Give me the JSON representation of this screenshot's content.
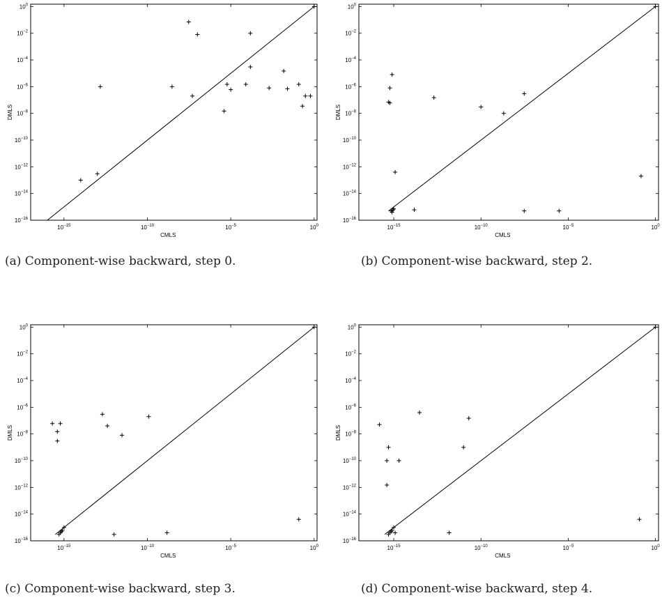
{
  "chart_data": [
    {
      "type": "scatter",
      "caption": "(a) Component-wise backward, step 0.",
      "xlabel": "CMLS",
      "ylabel": "DMLS",
      "xscale": "log",
      "yscale": "log",
      "xlim": [
        1e-17,
        1.5
      ],
      "ylim": [
        1e-16,
        1.5
      ],
      "x_ticks": [
        -15,
        -10,
        -5,
        0
      ],
      "y_ticks": [
        -16,
        -14,
        -12,
        -10,
        -8,
        -6,
        -4,
        -2,
        0
      ],
      "reference_line": {
        "x": [
          1e-16,
          1
        ],
        "y": [
          1e-16,
          1
        ]
      },
      "points": [
        {
          "x": 1e-14,
          "y": 1e-13
        },
        {
          "x": 1e-13,
          "y": 3e-13
        },
        {
          "x": 1.5e-13,
          "y": 1e-06
        },
        {
          "x": 3e-09,
          "y": 1e-06
        },
        {
          "x": 3e-08,
          "y": 0.07
        },
        {
          "x": 5e-08,
          "y": 2e-07
        },
        {
          "x": 1e-07,
          "y": 0.008
        },
        {
          "x": 4e-06,
          "y": 1.5e-08
        },
        {
          "x": 6e-06,
          "y": 1.5e-06
        },
        {
          "x": 1e-05,
          "y": 6e-07
        },
        {
          "x": 8e-05,
          "y": 1.5e-06
        },
        {
          "x": 0.00015,
          "y": 3e-05
        },
        {
          "x": 0.00015,
          "y": 0.01
        },
        {
          "x": 0.002,
          "y": 8e-07
        },
        {
          "x": 0.015,
          "y": 1.5e-05
        },
        {
          "x": 0.025,
          "y": 7e-07
        },
        {
          "x": 0.12,
          "y": 1.5e-06
        },
        {
          "x": 0.2,
          "y": 3.5e-08
        },
        {
          "x": 0.3,
          "y": 2e-07
        },
        {
          "x": 0.6,
          "y": 2e-07
        },
        {
          "x": 1,
          "y": 1
        }
      ]
    },
    {
      "type": "scatter",
      "caption": "(b) Component-wise backward, step 2.",
      "xlabel": "CMLS",
      "ylabel": "DMLS",
      "xscale": "log",
      "yscale": "log",
      "xlim": [
        1e-17,
        1.5
      ],
      "ylim": [
        1e-16,
        1.5
      ],
      "x_ticks": [
        -15,
        -10,
        -5,
        0
      ],
      "y_ticks": [
        -16,
        -14,
        -12,
        -10,
        -8,
        -6,
        -4,
        -2,
        0
      ],
      "reference_line": {
        "x": [
          5e-16,
          1
        ],
        "y": [
          5e-16,
          1
        ]
      },
      "points": [
        {
          "x": 5e-16,
          "y": 7e-08
        },
        {
          "x": 6e-16,
          "y": 8e-07
        },
        {
          "x": 6e-16,
          "y": 6e-08
        },
        {
          "x": 8e-16,
          "y": 8e-06
        },
        {
          "x": 7e-16,
          "y": 5e-16
        },
        {
          "x": 8e-16,
          "y": 4e-16
        },
        {
          "x": 9e-16,
          "y": 6e-16
        },
        {
          "x": 1e-15,
          "y": 7e-16
        },
        {
          "x": 1.2e-15,
          "y": 4e-13
        },
        {
          "x": 1.5e-14,
          "y": 6e-16
        },
        {
          "x": 2e-13,
          "y": 1.5e-07
        },
        {
          "x": 1e-10,
          "y": 3e-08
        },
        {
          "x": 2e-09,
          "y": 1e-08
        },
        {
          "x": 3e-08,
          "y": 3e-07
        },
        {
          "x": 3e-08,
          "y": 5e-16
        },
        {
          "x": 3e-06,
          "y": 5e-16
        },
        {
          "x": 0.15,
          "y": 2e-13
        },
        {
          "x": 1,
          "y": 1
        }
      ]
    },
    {
      "type": "scatter",
      "caption": "(c) Component-wise backward, step 3.",
      "xlabel": "CMLS",
      "ylabel": "DMLS",
      "xscale": "log",
      "yscale": "log",
      "xlim": [
        1e-17,
        1.5
      ],
      "ylim": [
        1e-16,
        1.5
      ],
      "x_ticks": [
        -15,
        -10,
        -5,
        0
      ],
      "y_ticks": [
        -16,
        -14,
        -12,
        -10,
        -8,
        -6,
        -4,
        -2,
        0
      ],
      "reference_line": {
        "x": [
          3e-16,
          1
        ],
        "y": [
          3e-16,
          1
        ]
      },
      "points": [
        {
          "x": 2e-16,
          "y": 6e-08
        },
        {
          "x": 4e-16,
          "y": 1.5e-08
        },
        {
          "x": 4e-16,
          "y": 3e-09
        },
        {
          "x": 6e-16,
          "y": 6e-08
        },
        {
          "x": 5e-16,
          "y": 3e-16
        },
        {
          "x": 6e-16,
          "y": 4e-16
        },
        {
          "x": 7e-16,
          "y": 5e-16
        },
        {
          "x": 8e-16,
          "y": 6e-16
        },
        {
          "x": 1e-15,
          "y": 1e-15
        },
        {
          "x": 2e-13,
          "y": 3e-07
        },
        {
          "x": 4e-13,
          "y": 4e-08
        },
        {
          "x": 1e-12,
          "y": 3e-16
        },
        {
          "x": 3e-12,
          "y": 8e-09
        },
        {
          "x": 1.2e-10,
          "y": 2e-07
        },
        {
          "x": 1.5e-09,
          "y": 4e-16
        },
        {
          "x": 0.12,
          "y": 4e-15
        },
        {
          "x": 1,
          "y": 1
        }
      ]
    },
    {
      "type": "scatter",
      "caption": "(d) Component-wise backward, step 4.",
      "xlabel": "CMLS",
      "ylabel": "DMLS",
      "xscale": "log",
      "yscale": "log",
      "xlim": [
        1e-17,
        1.5
      ],
      "ylim": [
        1e-16,
        1.5
      ],
      "x_ticks": [
        -15,
        -10,
        -5,
        0
      ],
      "y_ticks": [
        -16,
        -14,
        -12,
        -10,
        -8,
        -6,
        -4,
        -2,
        0
      ],
      "reference_line": {
        "x": [
          3e-16,
          1
        ],
        "y": [
          3e-16,
          1
        ]
      },
      "points": [
        {
          "x": 1.5e-16,
          "y": 5e-08
        },
        {
          "x": 4e-16,
          "y": 1e-10
        },
        {
          "x": 4e-16,
          "y": 1.5e-12
        },
        {
          "x": 5e-16,
          "y": 1e-09
        },
        {
          "x": 5e-16,
          "y": 3e-16
        },
        {
          "x": 6e-16,
          "y": 4e-16
        },
        {
          "x": 7e-16,
          "y": 5e-16
        },
        {
          "x": 8e-16,
          "y": 6e-16
        },
        {
          "x": 1e-15,
          "y": 1e-15
        },
        {
          "x": 1.2e-15,
          "y": 4e-16
        },
        {
          "x": 2e-15,
          "y": 1e-10
        },
        {
          "x": 3e-14,
          "y": 4e-07
        },
        {
          "x": 1.5e-12,
          "y": 4e-16
        },
        {
          "x": 1e-11,
          "y": 1e-09
        },
        {
          "x": 2e-11,
          "y": 1.5e-07
        },
        {
          "x": 0.12,
          "y": 4e-15
        },
        {
          "x": 1,
          "y": 1
        }
      ]
    }
  ]
}
